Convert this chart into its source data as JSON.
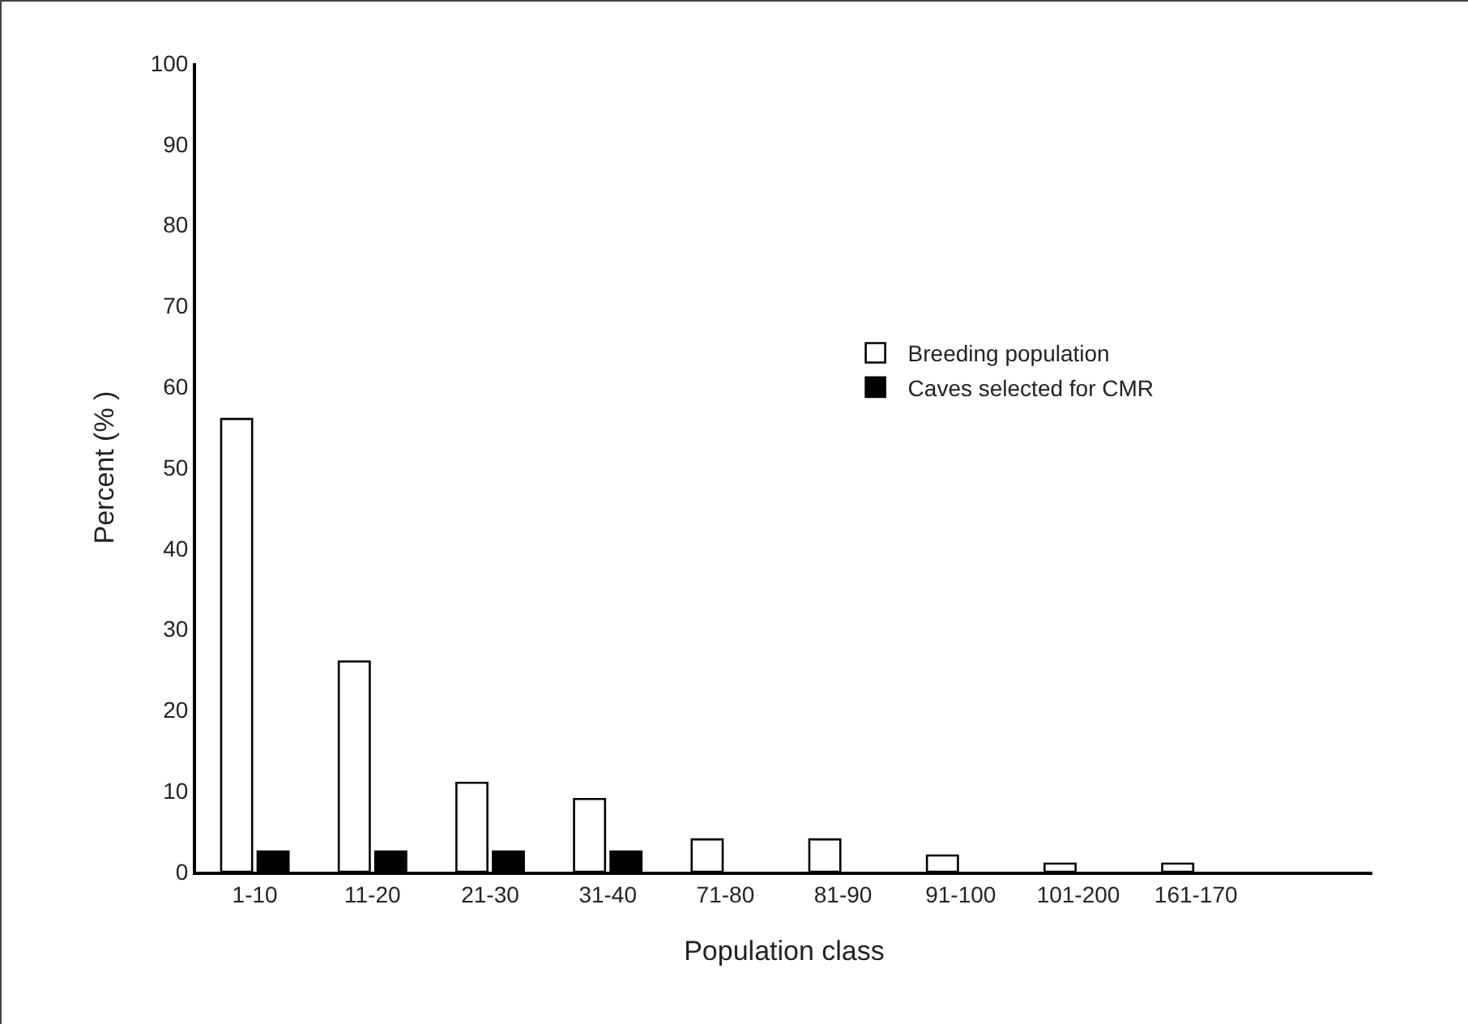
{
  "chart_data": {
    "type": "bar",
    "xlabel": "Population class",
    "ylabel": "Percent (% )",
    "categories": [
      "1-10",
      "11-20",
      "21-30",
      "31-40",
      "71-80",
      "81-90",
      "91-100",
      "101-200",
      "161-170",
      null
    ],
    "series": [
      {
        "name": "Breeding population",
        "color": "#ffffff",
        "values": [
          56,
          26,
          11,
          9,
          4,
          4,
          2,
          1,
          1,
          null
        ]
      },
      {
        "name": "Caves selected for CMR",
        "color": "#000000",
        "values": [
          2.5,
          2.5,
          2.5,
          2.5,
          null,
          null,
          null,
          null,
          null,
          null
        ]
      }
    ],
    "ylim": [
      0,
      100
    ],
    "yticks": [
      0,
      10,
      20,
      30,
      40,
      50,
      60,
      70,
      80,
      90,
      100
    ],
    "grid": false,
    "legend": "right"
  }
}
